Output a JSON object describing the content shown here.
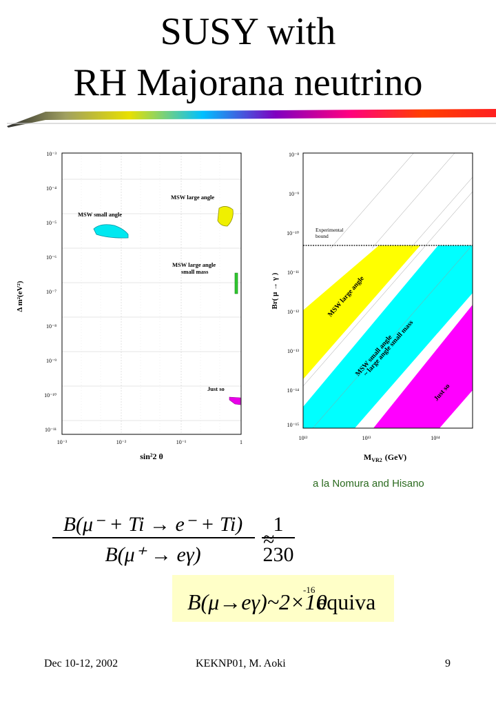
{
  "title": {
    "line1": "SUSY with",
    "line2": "RH Majorana neutrino"
  },
  "left_plot": {
    "ylabel": "Δ m²(eV²)",
    "xlabel": "sin²2 θ",
    "y_ticks": [
      "10⁻³",
      "10⁻⁴",
      "10⁻⁵",
      "10⁻⁶",
      "10⁻⁷",
      "10⁻⁸",
      "10⁻⁹",
      "10⁻¹⁰",
      "10⁻¹¹"
    ],
    "x_ticks": [
      "10⁻³",
      "10⁻²",
      "10⁻¹",
      "1"
    ],
    "regions": {
      "msw_small": "MSW small angle",
      "msw_large": "MSW large angle",
      "msw_large_small_mass_1": "MSW large angle",
      "msw_large_small_mass_2": "small mass",
      "just_so": "Just so"
    },
    "colors": {
      "msw_small": "#00e8f0",
      "msw_large": "#f0f000",
      "small_mass": "#30c830",
      "just_so": "#e800e8"
    }
  },
  "right_plot": {
    "ylabel": "Br( μ → γ )",
    "xlabel": "M",
    "xlabel_sub": "VR2",
    "xlabel_unit": "(GeV)",
    "y_ticks": [
      "10⁻⁸",
      "10⁻⁹",
      "10⁻¹⁰",
      "10⁻¹¹",
      "10⁻¹²",
      "10⁻¹³",
      "10⁻¹⁴",
      "10⁻¹⁵"
    ],
    "x_ticks": [
      "10¹²",
      "10¹³",
      "10¹⁴"
    ],
    "bound_label_1": "Experimental",
    "bound_label_2": "bound",
    "bands": {
      "msw_large": "MSW large angle",
      "msw_small_1": "MSW small angle",
      "msw_small_2": "~ large angle small mass",
      "just_so": "Just so"
    },
    "colors": {
      "yellow": "#ffff00",
      "cyan": "#00ffff",
      "magenta": "#ff00ff"
    }
  },
  "credit": "a la Nomura and Hisano",
  "equation": {
    "numerator": "B(μ⁻ + Ti → e⁻ + Ti)",
    "denominator": "B(μ⁺ → eγ)",
    "approx": "≈",
    "rhs_num": "1",
    "rhs_den": "230"
  },
  "box_equation": {
    "lhs": "B(μ→eγ)~2×10",
    "exponent": "-16",
    "tail": " equiva"
  },
  "footer": {
    "date": "Dec 10-12, 2002",
    "conference": "KEKNP01, M. Aoki",
    "page": "9"
  }
}
